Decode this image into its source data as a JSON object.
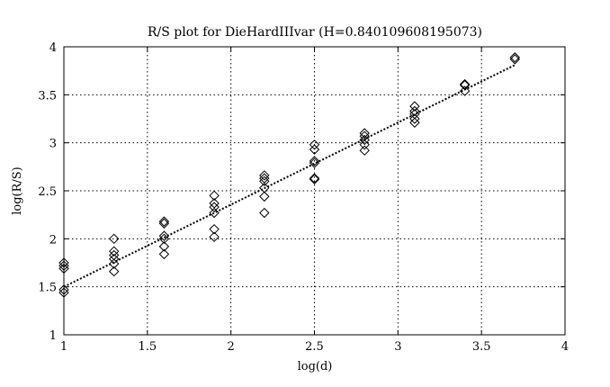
{
  "chart_data": {
    "type": "scatter",
    "title": "R/S plot for DieHardIIIvar (H=0.840109608195073)",
    "xlabel": "log(d)",
    "ylabel": "log(R/S)",
    "xlim": [
      1,
      4
    ],
    "ylim": [
      1,
      4
    ],
    "xticks": [
      1,
      1.5,
      2,
      2.5,
      3,
      3.5,
      4
    ],
    "yticks": [
      1,
      1.5,
      2,
      2.5,
      3,
      3.5,
      4
    ],
    "xtick_labels": [
      "1",
      "1.5",
      "2",
      "2.5",
      "3",
      "3.5",
      "4"
    ],
    "ytick_labels": [
      "1",
      "1.5",
      "2",
      "2.5",
      "3",
      "3.5",
      "4"
    ],
    "grid": true,
    "legend": "none",
    "series": [
      {
        "marker": "diamond",
        "points": [
          [
            1.0,
            1.75
          ],
          [
            1.0,
            1.72
          ],
          [
            1.0,
            1.69
          ],
          [
            1.0,
            1.47
          ],
          [
            1.0,
            1.44
          ],
          [
            1.3,
            2.0
          ],
          [
            1.3,
            1.87
          ],
          [
            1.3,
            1.83
          ],
          [
            1.3,
            1.79
          ],
          [
            1.3,
            1.74
          ],
          [
            1.3,
            1.66
          ],
          [
            1.6,
            2.18
          ],
          [
            1.6,
            2.16
          ],
          [
            1.6,
            2.03
          ],
          [
            1.6,
            2.0
          ],
          [
            1.6,
            1.92
          ],
          [
            1.6,
            1.84
          ],
          [
            1.9,
            2.45
          ],
          [
            1.9,
            2.37
          ],
          [
            1.9,
            2.33
          ],
          [
            1.9,
            2.27
          ],
          [
            1.9,
            2.1
          ],
          [
            1.9,
            2.02
          ],
          [
            2.2,
            2.66
          ],
          [
            2.2,
            2.63
          ],
          [
            2.2,
            2.6
          ],
          [
            2.2,
            2.53
          ],
          [
            2.2,
            2.44
          ],
          [
            2.2,
            2.27
          ],
          [
            2.5,
            2.98
          ],
          [
            2.5,
            2.93
          ],
          [
            2.5,
            2.81
          ],
          [
            2.5,
            2.79
          ],
          [
            2.5,
            2.63
          ],
          [
            2.5,
            2.62
          ],
          [
            2.8,
            3.1
          ],
          [
            2.8,
            3.07
          ],
          [
            2.8,
            3.03
          ],
          [
            2.8,
            2.98
          ],
          [
            2.8,
            2.92
          ],
          [
            3.1,
            3.38
          ],
          [
            3.1,
            3.33
          ],
          [
            3.1,
            3.3
          ],
          [
            3.1,
            3.25
          ],
          [
            3.1,
            3.21
          ],
          [
            3.4,
            3.61
          ],
          [
            3.4,
            3.6
          ],
          [
            3.4,
            3.54
          ],
          [
            3.7,
            3.89
          ],
          [
            3.7,
            3.87
          ]
        ]
      },
      {
        "style": "dotted-line",
        "x": [
          1.0,
          3.7
        ],
        "y": [
          1.5,
          3.81
        ]
      }
    ]
  }
}
